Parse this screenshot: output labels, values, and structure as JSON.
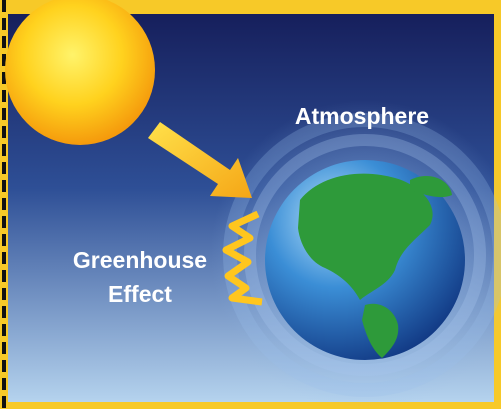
{
  "labels": {
    "atmosphere": "Atmosphere",
    "greenhouse": [
      "Greenhouse",
      "Effect"
    ]
  }
}
